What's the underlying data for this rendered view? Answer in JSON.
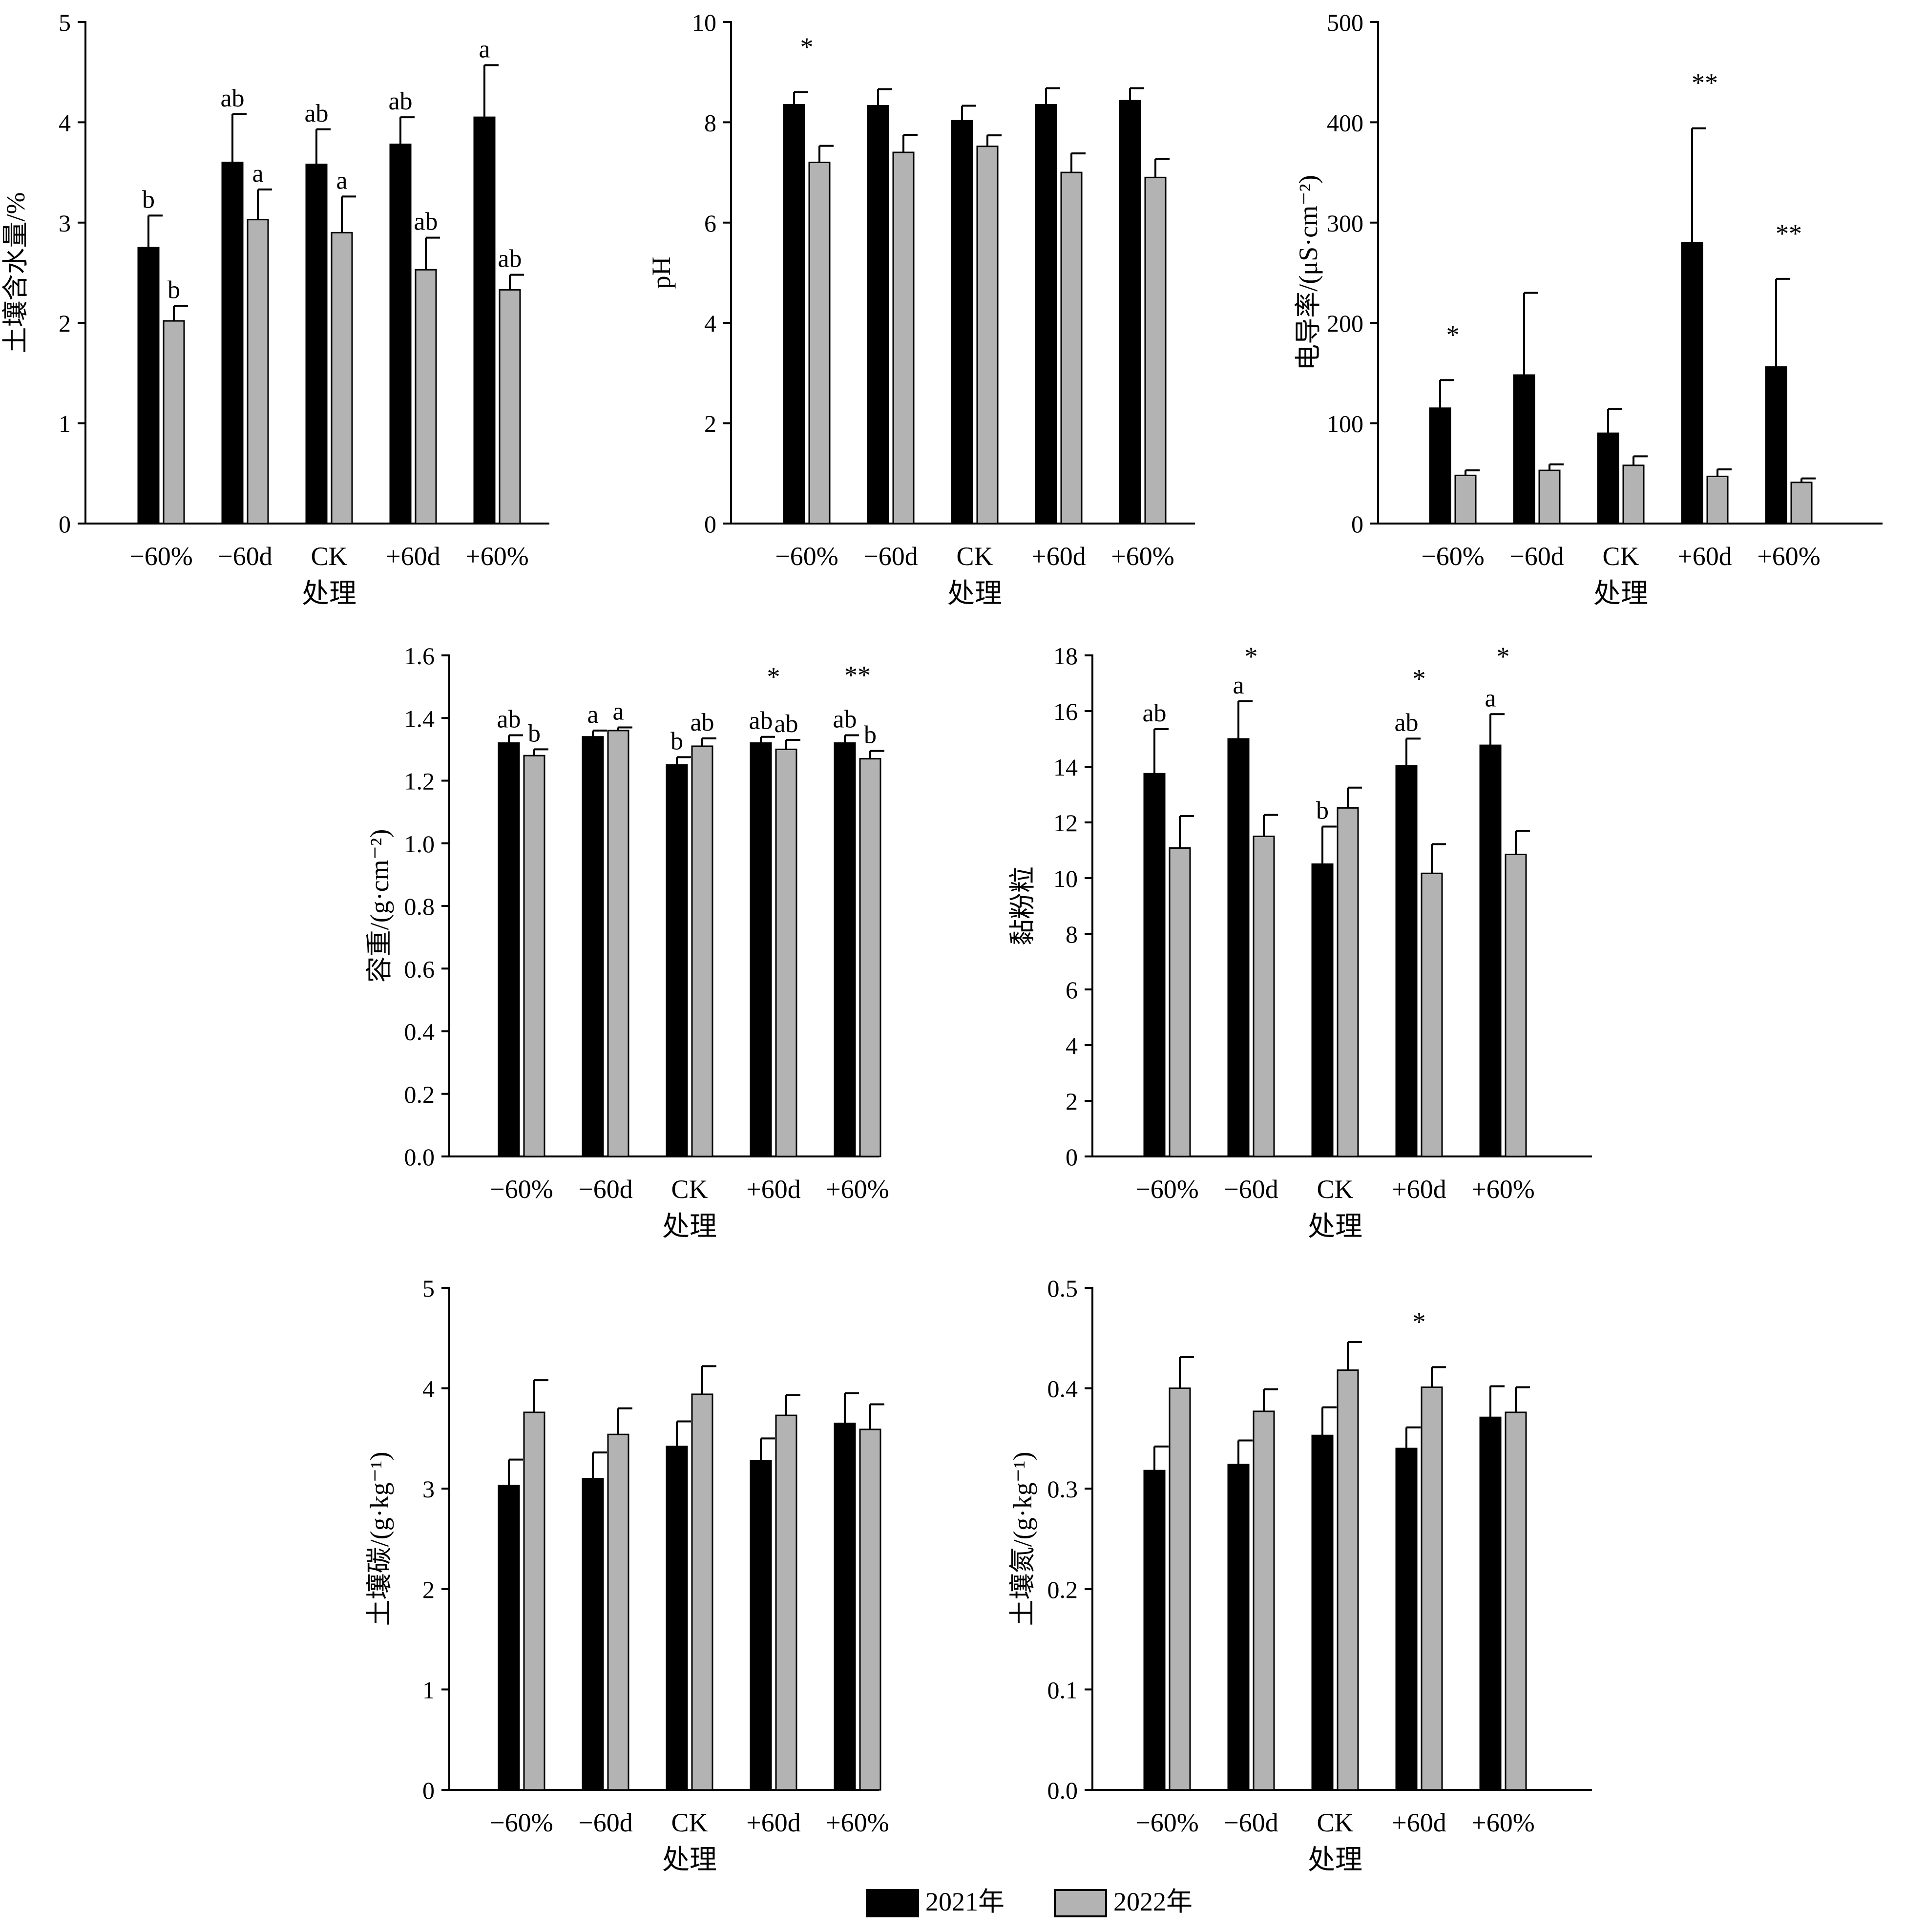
{
  "legend": {
    "items": [
      {
        "label": "2021年",
        "color": "#000000"
      },
      {
        "label": "2022年",
        "color": "#b3b3b3"
      }
    ]
  },
  "colors": {
    "bar_2021": "#000000",
    "bar_2022": "#b3b3b3",
    "axis": "#000000"
  },
  "chart_data": [
    {
      "type": "bar",
      "ylabel": "土壤含水量/%",
      "xlabel": "处理",
      "categories": [
        "−60%",
        "−60d",
        "CK",
        "+60d",
        "+60%"
      ],
      "ylim": [
        0,
        5
      ],
      "yticks": [
        "0",
        "1",
        "2",
        "3",
        "4",
        "5"
      ],
      "series": [
        {
          "name": "2021年",
          "values": [
            2.75,
            3.6,
            3.58,
            3.78,
            4.05
          ],
          "errors": [
            0.32,
            0.48,
            0.35,
            0.27,
            0.52
          ],
          "labels": [
            "b",
            "ab",
            "ab",
            "ab",
            "a"
          ]
        },
        {
          "name": "2022年",
          "values": [
            2.02,
            3.03,
            2.9,
            2.53,
            2.33
          ],
          "errors": [
            0.15,
            0.3,
            0.36,
            0.32,
            0.15
          ],
          "labels": [
            "b",
            "a",
            "a",
            "ab",
            "ab"
          ]
        }
      ],
      "significance": [
        "",
        "",
        "",
        "",
        ""
      ]
    },
    {
      "type": "bar",
      "ylabel": "pH",
      "xlabel": "处理",
      "categories": [
        "−60%",
        "−60d",
        "CK",
        "+60d",
        "+60%"
      ],
      "ylim": [
        0,
        10
      ],
      "yticks": [
        "0",
        "2",
        "4",
        "6",
        "8",
        "10"
      ],
      "series": [
        {
          "name": "2021年",
          "values": [
            8.35,
            8.33,
            8.03,
            8.35,
            8.43
          ],
          "errors": [
            0.25,
            0.33,
            0.3,
            0.33,
            0.25
          ],
          "labels": [
            "",
            "",
            "",
            "",
            ""
          ]
        },
        {
          "name": "2022年",
          "values": [
            7.2,
            7.4,
            7.52,
            7.0,
            6.9
          ],
          "errors": [
            0.33,
            0.35,
            0.22,
            0.38,
            0.37
          ],
          "labels": [
            "",
            "",
            "",
            "",
            ""
          ]
        }
      ],
      "significance": [
        "*",
        "",
        "",
        "",
        ""
      ]
    },
    {
      "type": "bar",
      "ylabel": "电导率/(μS·cm⁻²)",
      "xlabel": "处理",
      "categories": [
        "−60%",
        "−60d",
        "CK",
        "+60d",
        "+60%"
      ],
      "ylim": [
        0,
        500
      ],
      "yticks": [
        "0",
        "100",
        "200",
        "300",
        "400",
        "500"
      ],
      "series": [
        {
          "name": "2021年",
          "values": [
            115,
            148,
            90,
            280,
            156
          ],
          "errors": [
            28,
            82,
            24,
            114,
            88
          ],
          "labels": [
            "",
            "",
            "",
            "",
            ""
          ]
        },
        {
          "name": "2022年",
          "values": [
            48,
            53,
            58,
            47,
            41
          ],
          "errors": [
            5,
            6,
            9,
            7,
            4
          ],
          "labels": [
            "",
            "",
            "",
            "",
            ""
          ]
        }
      ],
      "significance": [
        "*",
        "",
        "",
        "**",
        "**"
      ]
    },
    {
      "type": "bar",
      "ylabel": "容重/(g·cm⁻²)",
      "xlabel": "处理",
      "categories": [
        "−60%",
        "−60d",
        "CK",
        "+60d",
        "+60%"
      ],
      "ylim": [
        0,
        1.6
      ],
      "yticks": [
        "0.0",
        "0.2",
        "0.4",
        "0.6",
        "0.8",
        "1.0",
        "1.2",
        "1.4",
        "1.6"
      ],
      "series": [
        {
          "name": "2021年",
          "values": [
            1.32,
            1.34,
            1.25,
            1.32,
            1.32
          ],
          "errors": [
            0.025,
            0.02,
            0.025,
            0.02,
            0.025
          ],
          "labels": [
            "ab",
            "a",
            "b",
            "ab",
            "ab"
          ]
        },
        {
          "name": "2022年",
          "values": [
            1.28,
            1.36,
            1.31,
            1.3,
            1.27
          ],
          "errors": [
            0.02,
            0.01,
            0.025,
            0.03,
            0.025
          ],
          "labels": [
            "b",
            "a",
            "ab",
            "ab",
            "b"
          ]
        }
      ],
      "significance": [
        "",
        "",
        "",
        "*",
        "**"
      ]
    },
    {
      "type": "bar",
      "ylabel": "黏粉粒",
      "xlabel": "处理",
      "categories": [
        "−60%",
        "−60d",
        "CK",
        "+60d",
        "+60%"
      ],
      "ylim": [
        0,
        18
      ],
      "yticks": [
        "0",
        "2",
        "4",
        "6",
        "8",
        "10",
        "12",
        "14",
        "16",
        "18"
      ],
      "series": [
        {
          "name": "2021年",
          "values": [
            13.75,
            15.0,
            10.5,
            14.03,
            14.77
          ],
          "errors": [
            1.6,
            1.35,
            1.35,
            0.98,
            1.12
          ],
          "labels": [
            "ab",
            "a",
            "b",
            "ab",
            "a"
          ]
        },
        {
          "name": "2022年",
          "values": [
            11.08,
            11.5,
            12.52,
            10.17,
            10.85
          ],
          "errors": [
            1.15,
            0.77,
            0.73,
            1.05,
            0.85
          ],
          "labels": [
            "",
            "",
            "",
            "",
            ""
          ]
        }
      ],
      "significance": [
        "",
        "*",
        "",
        "*",
        "*"
      ]
    },
    {
      "type": "bar",
      "ylabel": "土壤碳/(g·kg⁻¹)",
      "xlabel": "处理",
      "categories": [
        "−60%",
        "−60d",
        "CK",
        "+60d",
        "+60%"
      ],
      "ylim": [
        0,
        5
      ],
      "yticks": [
        "0",
        "1",
        "2",
        "3",
        "4",
        "5"
      ],
      "series": [
        {
          "name": "2021年",
          "values": [
            3.03,
            3.1,
            3.42,
            3.28,
            3.65
          ],
          "errors": [
            0.26,
            0.26,
            0.25,
            0.22,
            0.3
          ],
          "labels": [
            "",
            "",
            "",
            "",
            ""
          ]
        },
        {
          "name": "2022年",
          "values": [
            3.76,
            3.54,
            3.94,
            3.73,
            3.59
          ],
          "errors": [
            0.32,
            0.26,
            0.28,
            0.2,
            0.25
          ],
          "labels": [
            "",
            "",
            "",
            "",
            ""
          ]
        }
      ],
      "significance": [
        "",
        "",
        "",
        "",
        ""
      ]
    },
    {
      "type": "bar",
      "ylabel": "土壤氮/(g·kg⁻¹)",
      "xlabel": "处理",
      "categories": [
        "−60%",
        "−60d",
        "CK",
        "+60d",
        "+60%"
      ],
      "ylim": [
        0,
        0.5
      ],
      "yticks": [
        "0.0",
        "0.1",
        "0.2",
        "0.3",
        "0.4",
        "0.5"
      ],
      "series": [
        {
          "name": "2021年",
          "values": [
            0.318,
            0.324,
            0.353,
            0.34,
            0.371
          ],
          "errors": [
            0.024,
            0.024,
            0.028,
            0.021,
            0.031
          ],
          "labels": [
            "",
            "",
            "",
            "",
            ""
          ]
        },
        {
          "name": "2022年",
          "values": [
            0.4,
            0.377,
            0.418,
            0.401,
            0.376
          ],
          "errors": [
            0.031,
            0.022,
            0.028,
            0.02,
            0.025
          ],
          "labels": [
            "",
            "",
            "",
            "",
            ""
          ]
        }
      ],
      "significance": [
        "",
        "",
        "",
        "*",
        ""
      ]
    }
  ]
}
